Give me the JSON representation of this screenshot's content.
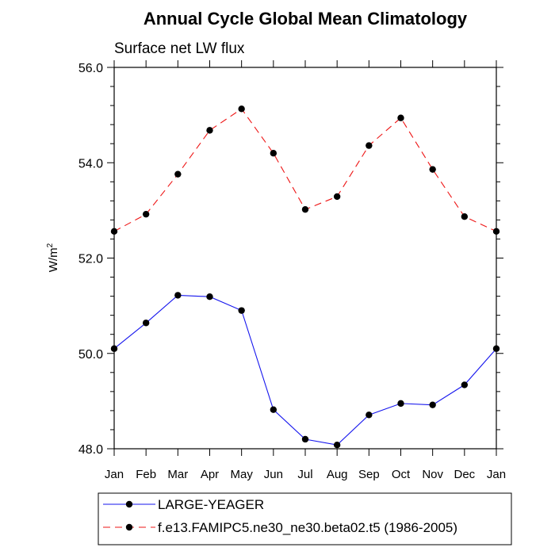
{
  "chart_data": {
    "type": "line",
    "title": "Annual Cycle Global Mean Climatology",
    "subtitle": "Surface net LW flux",
    "xlabel": "",
    "ylabel": "W/m",
    "ylabel_superscript": "2",
    "categories": [
      "Jan",
      "Feb",
      "Mar",
      "Apr",
      "May",
      "Jun",
      "Jul",
      "Aug",
      "Sep",
      "Oct",
      "Nov",
      "Dec",
      "Jan"
    ],
    "ylim": [
      48.0,
      56.0
    ],
    "yticks": [
      "48.0",
      "50.0",
      "52.0",
      "54.0",
      "56.0"
    ],
    "series": [
      {
        "name": "LARGE-YEAGER",
        "color": "#1515ee",
        "dash": "solid",
        "values": [
          50.1,
          50.64,
          51.22,
          51.19,
          50.9,
          48.82,
          48.2,
          48.08,
          48.71,
          48.95,
          48.92,
          49.34,
          50.1
        ]
      },
      {
        "name": "f.e13.FAMIPC5.ne30_ne30.beta02.t5 (1986-2005)",
        "color": "#ee1515",
        "dash": "dashed",
        "values": [
          52.56,
          52.92,
          53.76,
          54.68,
          55.13,
          54.2,
          53.02,
          53.29,
          54.36,
          54.94,
          53.86,
          52.87,
          52.56
        ]
      }
    ],
    "legend_position": "bottom"
  }
}
